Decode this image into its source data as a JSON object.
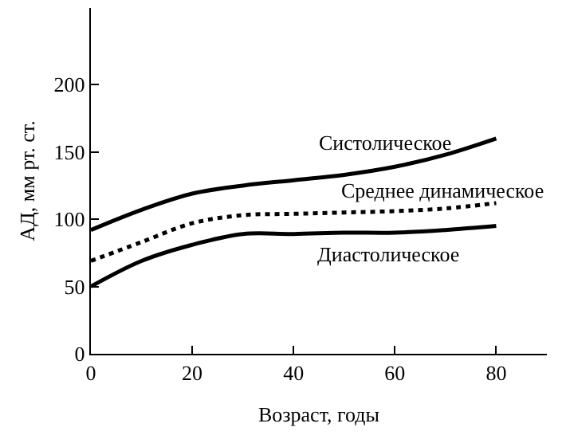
{
  "chart_data": {
    "type": "line",
    "xlabel": "Возраст, годы",
    "ylabel": "АД, мм рт. ст.",
    "x": [
      0,
      10,
      20,
      30,
      40,
      50,
      60,
      70,
      80
    ],
    "series": [
      {
        "name": "Систолическое",
        "color": "#000000",
        "line_style": "solid",
        "values": [
          92,
          107,
          119,
          125,
          129,
          133,
          139,
          148,
          160
        ]
      },
      {
        "name": "Среднее динамическое",
        "color": "#000000",
        "line_style": "dotted",
        "values": [
          69,
          83,
          97,
          103,
          104,
          105,
          106,
          108,
          112
        ]
      },
      {
        "name": "Диастолическое",
        "color": "#000000",
        "line_style": "solid",
        "values": [
          50,
          69,
          81,
          89,
          89,
          90,
          90,
          92,
          95
        ]
      }
    ],
    "xlim": [
      0,
      90
    ],
    "ylim": [
      0,
      257
    ],
    "xticks": [
      0,
      20,
      40,
      60,
      80
    ],
    "yticks": [
      0,
      50,
      100,
      150,
      200
    ],
    "grid": false,
    "legend": false,
    "marker": "none"
  }
}
